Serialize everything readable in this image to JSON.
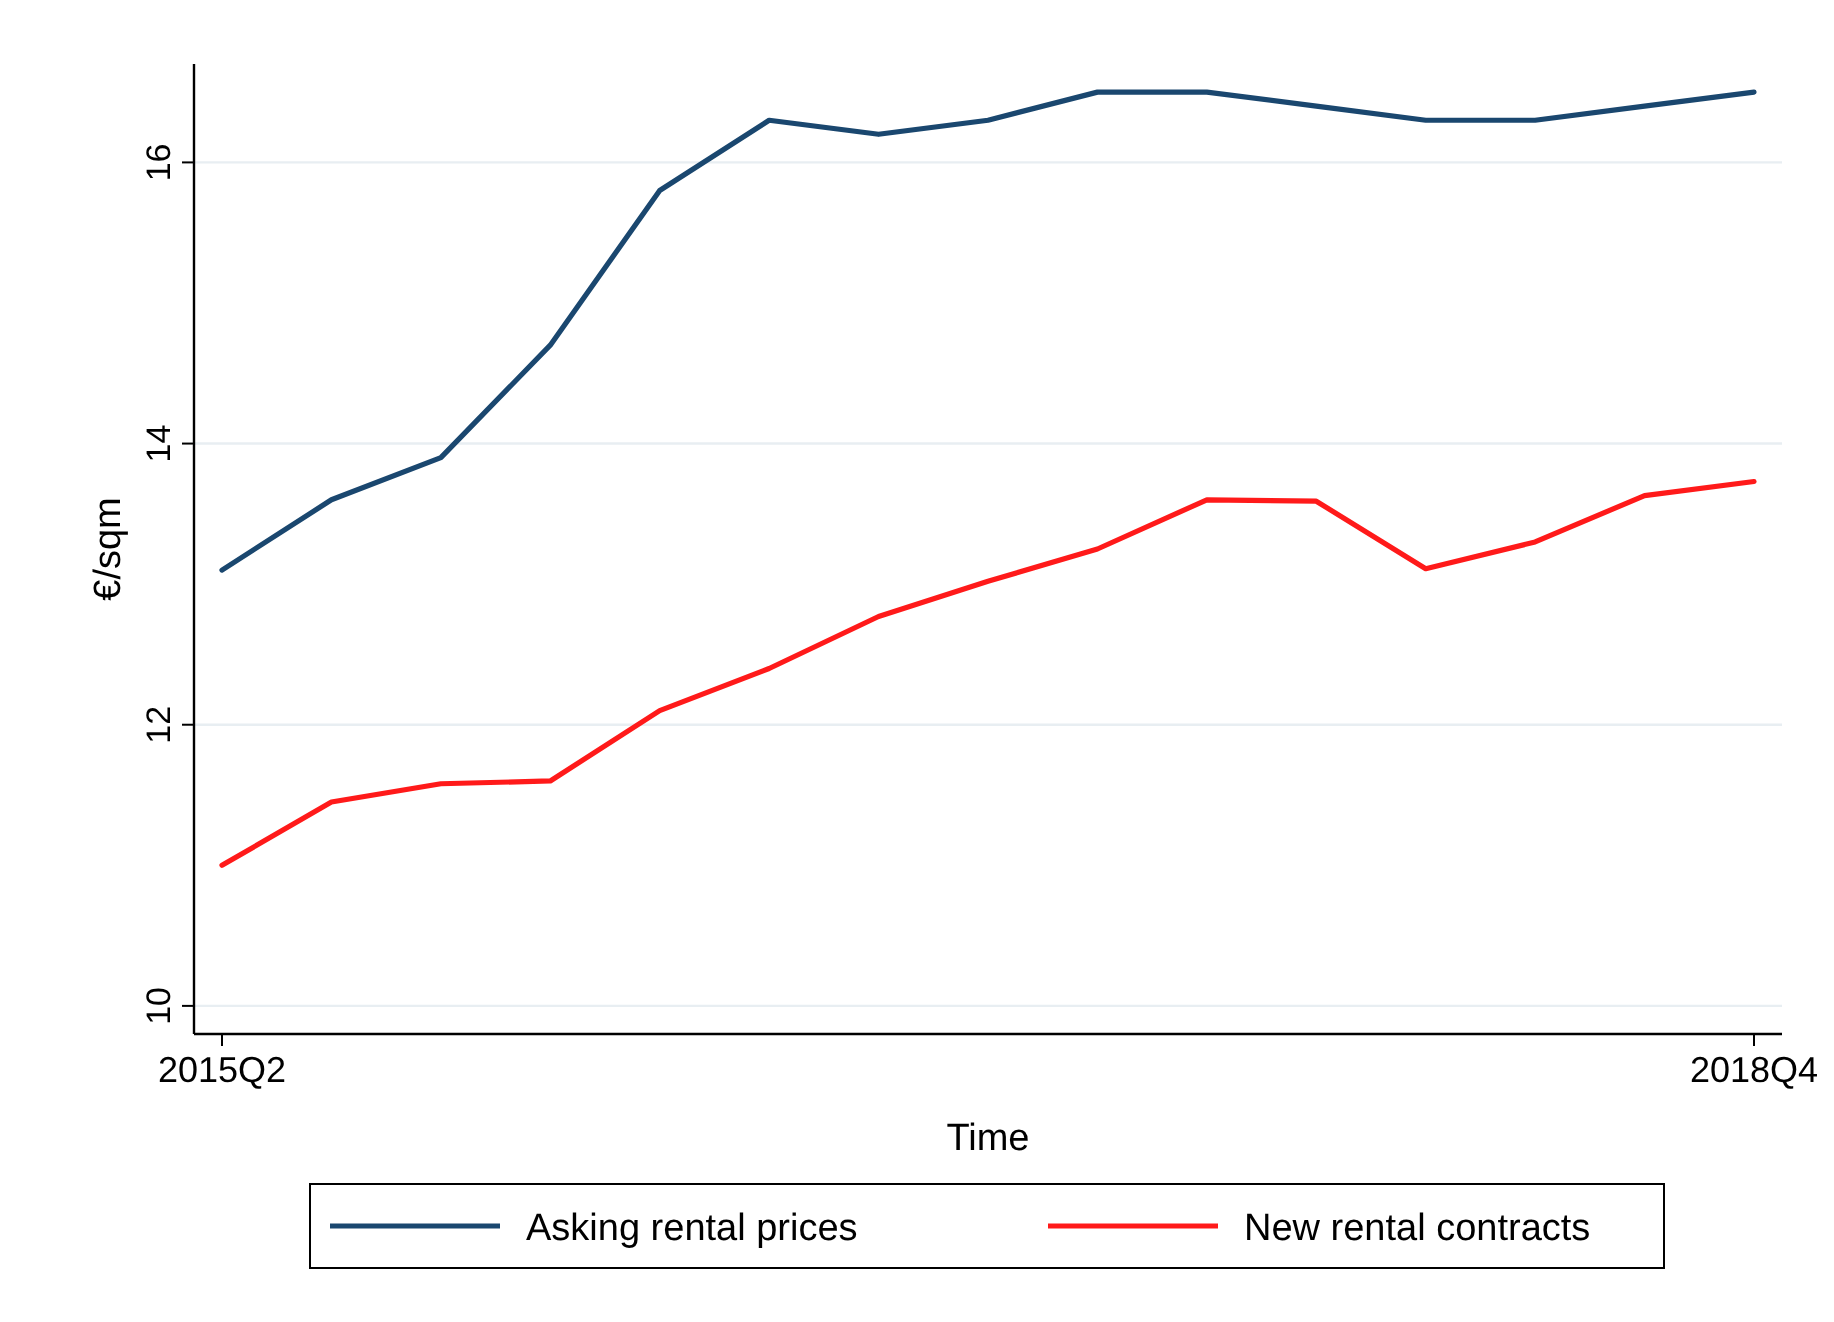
{
  "chart_data": {
    "type": "line",
    "xlabel": "Time",
    "ylabel": "€/sqm",
    "categories": [
      "2015Q2",
      null,
      null,
      null,
      null,
      null,
      null,
      null,
      null,
      null,
      null,
      null,
      null,
      null,
      "2018Q4"
    ],
    "series": [
      {
        "name": "Asking rental prices",
        "color": "#1a476f",
        "values": [
          13.1,
          13.6,
          13.9,
          14.7,
          15.8,
          16.3,
          16.2,
          16.3,
          16.5,
          16.5,
          16.4,
          16.3,
          16.3,
          16.4,
          16.5
        ]
      },
      {
        "name": "New rental contracts",
        "color": "#ff1a1a",
        "values": [
          11.0,
          11.45,
          11.58,
          11.6,
          12.1,
          12.4,
          12.77,
          13.02,
          13.25,
          13.6,
          13.59,
          13.11,
          13.3,
          13.63,
          13.73
        ]
      }
    ],
    "ylim": [
      9.8,
      16.7
    ],
    "yticks": [
      10,
      12,
      14,
      16
    ],
    "grid": "y",
    "legend": "bottom",
    "marker": "none",
    "line_style": "solid"
  }
}
